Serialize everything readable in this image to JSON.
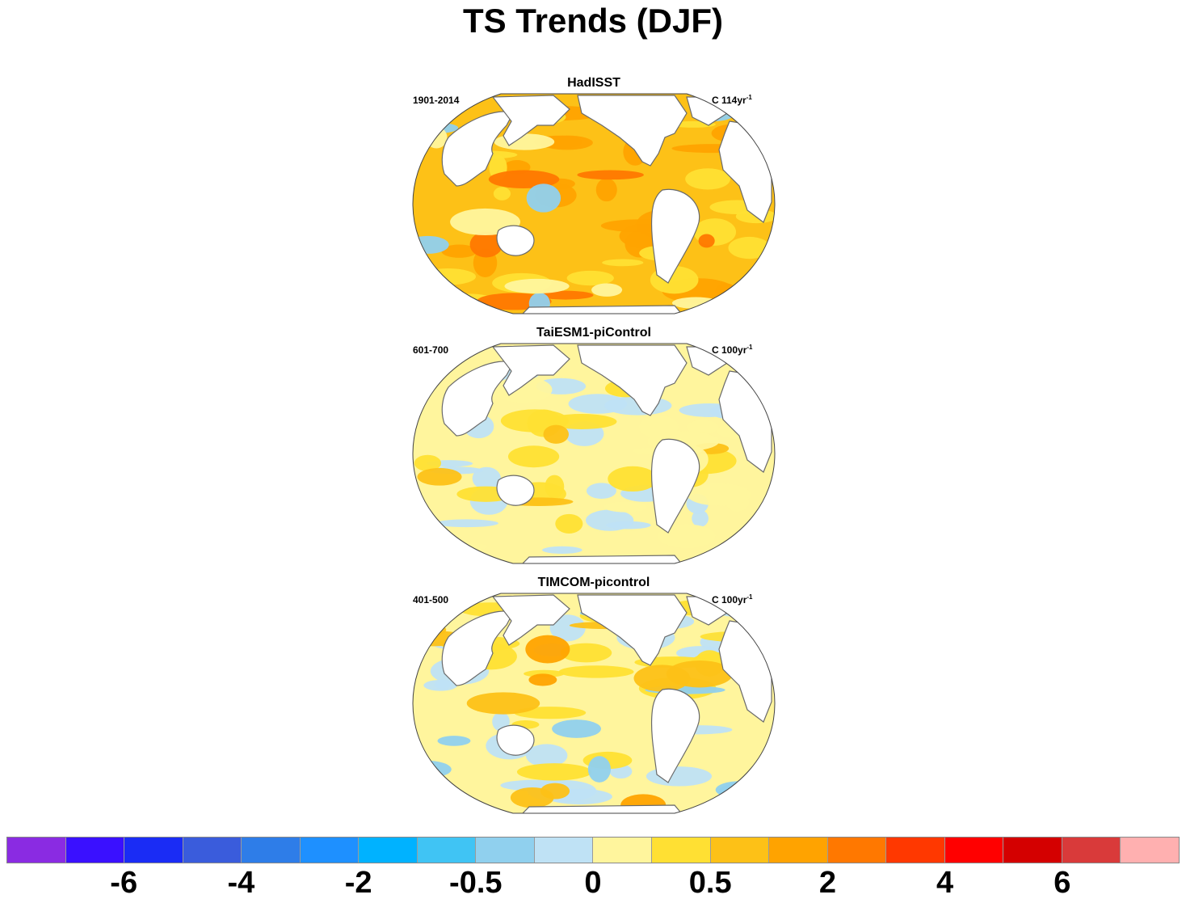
{
  "title": "TS Trends (DJF)",
  "panels": [
    {
      "name": "HadISST",
      "period": "1901-2014",
      "units": "C 114yr",
      "units_sup": "-1",
      "palette": "warm"
    },
    {
      "name": "TaiESM1-piControl",
      "period": "601-700",
      "units": "C 100yr",
      "units_sup": "-1",
      "palette": "mild"
    },
    {
      "name": "TIMCOM-picontrol",
      "period": "401-500",
      "units": "C 100yr",
      "units_sup": "-1",
      "palette": "mixed"
    }
  ],
  "colorbar": {
    "colors": [
      "#8a2be2",
      "#3a10ff",
      "#1a2cf5",
      "#3a5cdc",
      "#2e7de8",
      "#1e90ff",
      "#00b2ff",
      "#40c4f4",
      "#90d0ee",
      "#bfe2f5",
      "#fff59d",
      "#ffe033",
      "#fdc117",
      "#ffa300",
      "#ff7800",
      "#ff3800",
      "#ff0000",
      "#d40000",
      "#d93a3a",
      "#ffb0b0"
    ],
    "tick_labels": [
      {
        "label": "-6",
        "boundary": 2
      },
      {
        "label": "-4",
        "boundary": 4
      },
      {
        "label": "-2",
        "boundary": 6
      },
      {
        "label": "-0.5",
        "boundary": 8
      },
      {
        "label": "0",
        "boundary": 10
      },
      {
        "label": "0.5",
        "boundary": 12
      },
      {
        "label": "2",
        "boundary": 14
      },
      {
        "label": "4",
        "boundary": 16
      },
      {
        "label": "6",
        "boundary": 18
      }
    ]
  }
}
